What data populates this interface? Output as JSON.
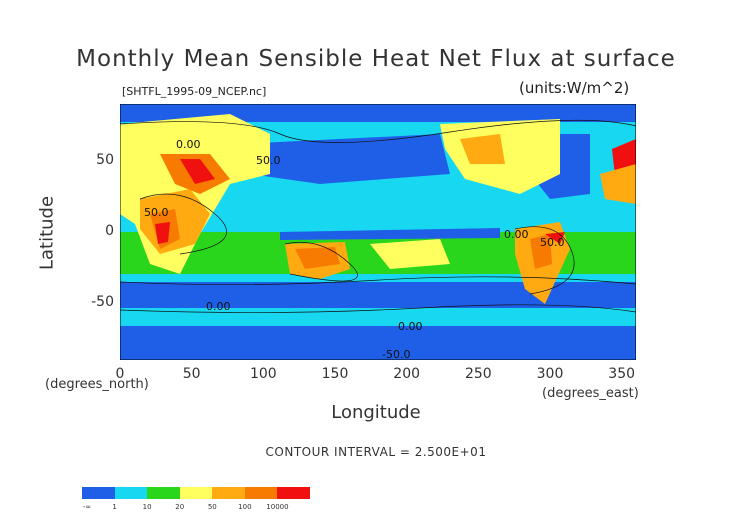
{
  "chart_data": {
    "type": "heatmap",
    "title": "Monthly Mean Sensible Heat Net Flux at surface",
    "source_label": "[SHTFL_1995-09_NCEP.nc]",
    "units_label": "(units:W/m^2)",
    "xlabel": "Longitude",
    "ylabel": "Latitude",
    "x_unit_note": "(degrees_east)",
    "y_unit_note": "(degrees_north)",
    "xlim": [
      0,
      360
    ],
    "ylim": [
      -90,
      90
    ],
    "x_ticks": [
      "0",
      "50",
      "100",
      "150",
      "200",
      "250",
      "300",
      "350"
    ],
    "y_ticks": [
      "50",
      "0",
      "-50"
    ],
    "contour_interval_text": "CONTOUR INTERVAL = 2.500E+01",
    "contour_labels": [
      "0.00",
      "50.0",
      "-50.0"
    ],
    "colorbar": {
      "levels": [
        "-∞",
        "1",
        "10",
        "20",
        "50",
        "100",
        "10000"
      ],
      "colors": [
        "#1f5fe8",
        "#17d8f0",
        "#2ad61c",
        "#ffff60",
        "#ffaa10",
        "#f77b00",
        "#f01010"
      ]
    },
    "colors": {
      "ocean_neg": "#1f5fe8",
      "ocean_low": "#17d8f0",
      "mid": "#2ad61c",
      "warm": "#ffff60",
      "hot": "#ffaa10",
      "hotter": "#f77b00",
      "max": "#f01010"
    }
  }
}
